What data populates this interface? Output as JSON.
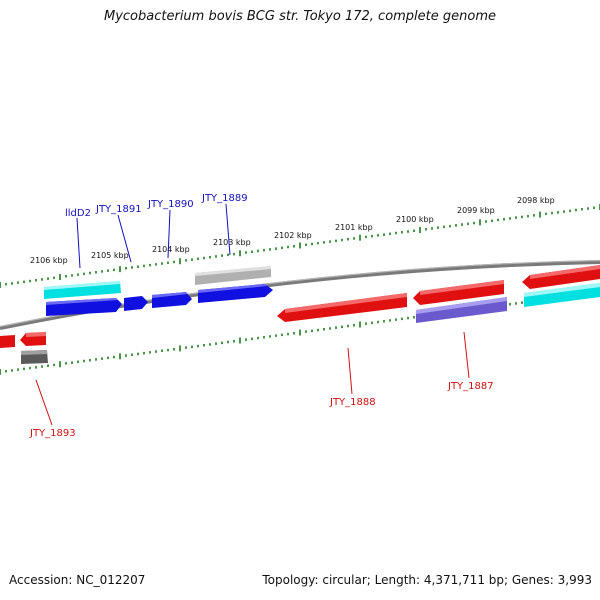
{
  "title": "Mycobacterium bovis BCG str. Tokyo 172, complete genome",
  "footer": {
    "accession": "Accession: NC_012207",
    "summary": "Topology: circular; Length: 4,371,711 bp; Genes: 3,993"
  },
  "colors": {
    "tick": "#1a7a1a",
    "backbone": "#808080",
    "forward_gene": "#1010e0",
    "forward_label": "#1010c0",
    "reverse_gene": "#e01010",
    "reverse_label": "#d01010",
    "cyan": "#00e5e5",
    "grey": "#b0b0b0",
    "purple": "#6a5acd",
    "dark_grey": "#606060"
  },
  "kbp_labels": [
    "2106 kbp",
    "2105 kbp",
    "2104 kbp",
    "2103 kbp",
    "2102 kbp",
    "2101 kbp",
    "2100 kbp",
    "2099 kbp",
    "2098 kbp"
  ],
  "forward_gene_labels": [
    "lldD2",
    "JTY_1891",
    "JTY_1890",
    "JTY_1889"
  ],
  "reverse_gene_labels": [
    "JTY_1893",
    "JTY_1888",
    "JTY_1887"
  ]
}
